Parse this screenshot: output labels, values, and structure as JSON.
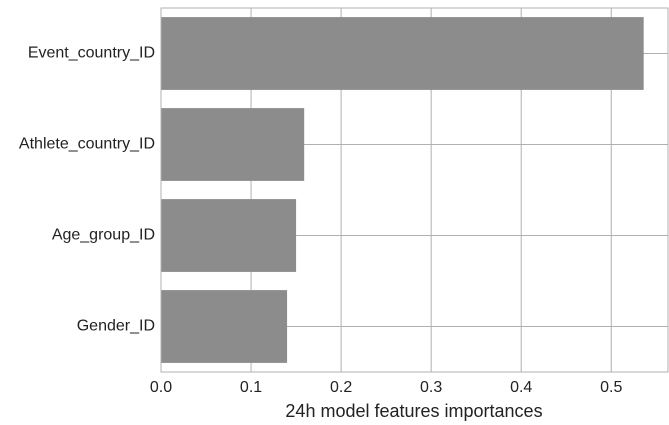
{
  "chart_data": {
    "type": "barh",
    "xlabel": "24h model features importances",
    "categories": [
      "Event_country_ID",
      "Athlete_country_ID",
      "Age_group_ID",
      "Gender_ID"
    ],
    "values": [
      0.536,
      0.159,
      0.15,
      0.14
    ],
    "color": "#8c8c8c",
    "xlim": [
      0,
      0.563
    ],
    "xticks": [
      {
        "value": 0,
        "label": "0.0"
      },
      0.1,
      0.2,
      0.3,
      0.4,
      0.5
    ],
    "grid": true
  }
}
